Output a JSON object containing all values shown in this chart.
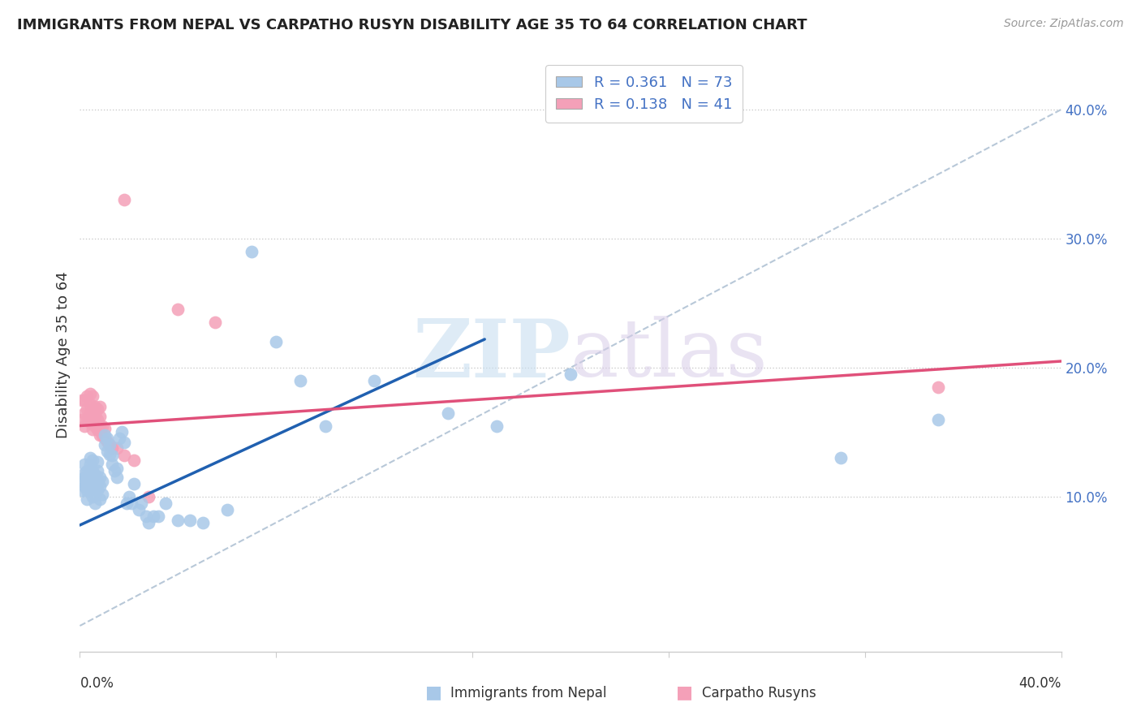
{
  "title": "IMMIGRANTS FROM NEPAL VS CARPATHO RUSYN DISABILITY AGE 35 TO 64 CORRELATION CHART",
  "source": "Source: ZipAtlas.com",
  "ylabel": "Disability Age 35 to 64",
  "nepal_R": 0.361,
  "nepal_N": 73,
  "rusyn_R": 0.138,
  "rusyn_N": 41,
  "nepal_color": "#a8c8e8",
  "rusyn_color": "#f4a0b8",
  "nepal_line_color": "#2060b0",
  "rusyn_line_color": "#e0507a",
  "diagonal_color": "#b8c8d8",
  "tick_color": "#4472c4",
  "xlim": [
    0.0,
    0.4
  ],
  "ylim": [
    -0.02,
    0.44
  ],
  "nepal_line_x": [
    0.0,
    0.165
  ],
  "nepal_line_y": [
    0.078,
    0.222
  ],
  "rusyn_line_x": [
    0.0,
    0.4
  ],
  "rusyn_line_y": [
    0.155,
    0.205
  ],
  "nepal_scatter_x": [
    0.001,
    0.001,
    0.002,
    0.002,
    0.002,
    0.002,
    0.003,
    0.003,
    0.003,
    0.003,
    0.003,
    0.004,
    0.004,
    0.004,
    0.004,
    0.004,
    0.005,
    0.005,
    0.005,
    0.005,
    0.005,
    0.006,
    0.006,
    0.006,
    0.006,
    0.007,
    0.007,
    0.007,
    0.007,
    0.008,
    0.008,
    0.008,
    0.009,
    0.009,
    0.01,
    0.01,
    0.011,
    0.011,
    0.012,
    0.012,
    0.013,
    0.013,
    0.014,
    0.015,
    0.015,
    0.016,
    0.017,
    0.018,
    0.019,
    0.02,
    0.021,
    0.022,
    0.024,
    0.025,
    0.027,
    0.028,
    0.03,
    0.032,
    0.035,
    0.04,
    0.045,
    0.05,
    0.06,
    0.07,
    0.08,
    0.09,
    0.1,
    0.12,
    0.15,
    0.17,
    0.2,
    0.31,
    0.35
  ],
  "nepal_scatter_y": [
    0.105,
    0.112,
    0.115,
    0.108,
    0.118,
    0.125,
    0.11,
    0.115,
    0.12,
    0.105,
    0.098,
    0.108,
    0.112,
    0.118,
    0.125,
    0.13,
    0.1,
    0.107,
    0.113,
    0.12,
    0.128,
    0.095,
    0.102,
    0.11,
    0.117,
    0.105,
    0.112,
    0.12,
    0.127,
    0.098,
    0.108,
    0.115,
    0.102,
    0.112,
    0.14,
    0.148,
    0.135,
    0.145,
    0.133,
    0.14,
    0.125,
    0.132,
    0.12,
    0.115,
    0.122,
    0.145,
    0.15,
    0.142,
    0.095,
    0.1,
    0.095,
    0.11,
    0.09,
    0.095,
    0.085,
    0.08,
    0.085,
    0.085,
    0.095,
    0.082,
    0.082,
    0.08,
    0.09,
    0.29,
    0.22,
    0.19,
    0.155,
    0.19,
    0.165,
    0.155,
    0.195,
    0.13,
    0.16
  ],
  "rusyn_scatter_x": [
    0.001,
    0.001,
    0.002,
    0.002,
    0.002,
    0.003,
    0.003,
    0.003,
    0.004,
    0.004,
    0.004,
    0.004,
    0.005,
    0.005,
    0.005,
    0.005,
    0.006,
    0.006,
    0.006,
    0.007,
    0.007,
    0.007,
    0.008,
    0.008,
    0.008,
    0.008,
    0.009,
    0.009,
    0.01,
    0.01,
    0.011,
    0.012,
    0.013,
    0.015,
    0.018,
    0.022,
    0.028,
    0.04,
    0.055,
    0.35,
    0.018
  ],
  "rusyn_scatter_y": [
    0.16,
    0.175,
    0.155,
    0.165,
    0.175,
    0.16,
    0.168,
    0.178,
    0.158,
    0.165,
    0.172,
    0.18,
    0.152,
    0.16,
    0.168,
    0.178,
    0.155,
    0.163,
    0.17,
    0.152,
    0.16,
    0.168,
    0.148,
    0.155,
    0.162,
    0.17,
    0.148,
    0.155,
    0.145,
    0.153,
    0.143,
    0.14,
    0.138,
    0.138,
    0.132,
    0.128,
    0.1,
    0.245,
    0.235,
    0.185,
    0.33
  ]
}
